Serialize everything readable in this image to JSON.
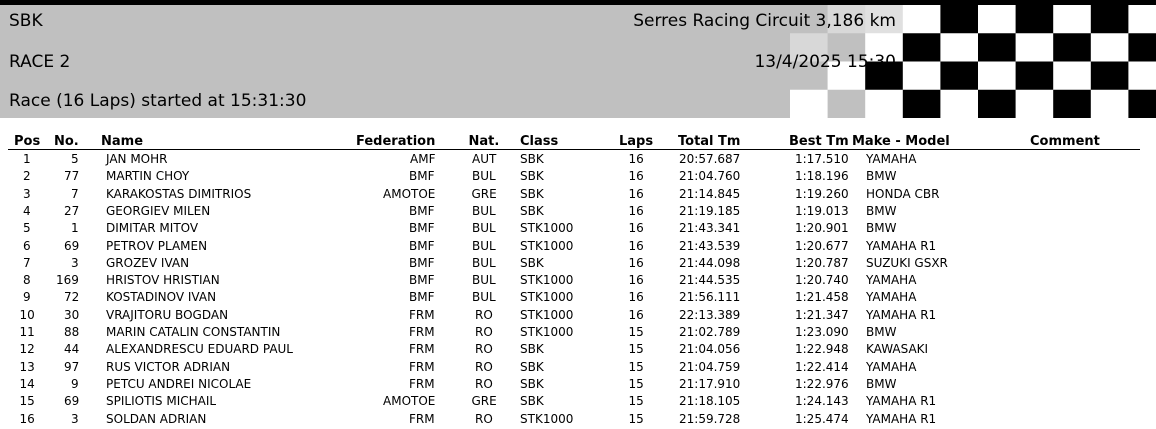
{
  "header": {
    "lines": [
      "SBK",
      "RACE 2",
      "Race (16 Laps) started at 15:31:30"
    ],
    "circuit": "Serres Racing Circuit 3,186 km",
    "date": "13/4/2025 15:30"
  },
  "table": {
    "columns": [
      "Pos",
      "No.",
      "Name",
      "Federation",
      "Nat.",
      "Class",
      "Laps",
      "Total Tm",
      "Best Tm",
      "Make - Model",
      "Comment"
    ],
    "rows": [
      [
        "1",
        "5",
        "JAN MOHR",
        "AMF",
        "AUT",
        "SBK",
        "16",
        "20:57.687",
        "1:17.510",
        "YAMAHA"
      ],
      [
        "2",
        "77",
        "MARTIN CHOY",
        "BMF",
        "BUL",
        "SBK",
        "16",
        "21:04.760",
        "1:18.196",
        "BMW"
      ],
      [
        "3",
        "7",
        "KARAKOSTAS DIMITRIOS",
        "AMOTOE",
        "GRE",
        "SBK",
        "16",
        "21:14.845",
        "1:19.260",
        "HONDA CBR"
      ],
      [
        "4",
        "27",
        "GEORGIEV MILEN",
        "BMF",
        "BUL",
        "SBK",
        "16",
        "21:19.185",
        "1:19.013",
        "BMW"
      ],
      [
        "5",
        "1",
        "DIMITAR MITOV",
        "BMF",
        "BUL",
        "STK1000",
        "16",
        "21:43.341",
        "1:20.901",
        "BMW"
      ],
      [
        "6",
        "69",
        "PETROV PLAMEN",
        "BMF",
        "BUL",
        "STK1000",
        "16",
        "21:43.539",
        "1:20.677",
        "YAMAHA R1"
      ],
      [
        "7",
        "3",
        "GROZEV IVAN",
        "BMF",
        "BUL",
        "SBK",
        "16",
        "21:44.098",
        "1:20.787",
        "SUZUKI GSXR"
      ],
      [
        "8",
        "169",
        "HRISTOV HRISTIAN",
        "BMF",
        "BUL",
        "STK1000",
        "16",
        "21:44.535",
        "1:20.740",
        "YAMAHA"
      ],
      [
        "9",
        "72",
        "KOSTADINOV IVAN",
        "BMF",
        "BUL",
        "STK1000",
        "16",
        "21:56.111",
        "1:21.458",
        "YAMAHA"
      ],
      [
        "10",
        "30",
        "VRAJITORU BOGDAN",
        "FRM",
        "RO",
        "STK1000",
        "16",
        "22:13.389",
        "1:21.347",
        "YAMAHA R1"
      ],
      [
        "11",
        "88",
        "MARIN CATALIN CONSTANTIN",
        "FRM",
        "RO",
        "STK1000",
        "15",
        "21:02.789",
        "1:23.090",
        "BMW"
      ],
      [
        "12",
        "44",
        "ALEXANDRESCU EDUARD PAUL",
        "FRM",
        "RO",
        "SBK",
        "15",
        "21:04.056",
        "1:22.948",
        "KAWASAKI"
      ],
      [
        "13",
        "97",
        "RUS VICTOR ADRIAN",
        "FRM",
        "RO",
        "SBK",
        "15",
        "21:04.759",
        "1:22.414",
        "YAMAHA"
      ],
      [
        "14",
        "9",
        "PETCU ANDREI NICOLAE",
        "FRM",
        "RO",
        "SBK",
        "15",
        "21:17.910",
        "1:22.976",
        "BMW"
      ],
      [
        "15",
        "69",
        "SPILIOTIS MICHAIL",
        "AMOTOE",
        "GRE",
        "SBK",
        "15",
        "21:18.105",
        "1:24.143",
        "YAMAHA R1"
      ],
      [
        "16",
        "3",
        "SOLDAN ADRIAN",
        "FRM",
        "RO",
        "STK1000",
        "15",
        "21:59.728",
        "1:25.474",
        "YAMAHA R1"
      ]
    ]
  }
}
